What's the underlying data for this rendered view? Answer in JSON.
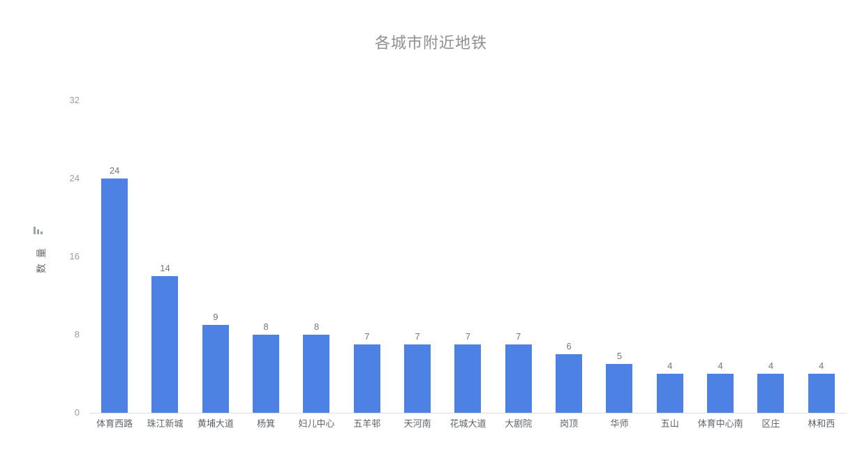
{
  "title": "各城市附近地铁",
  "y_axis": {
    "name": "数量",
    "tick_labels": [
      "0",
      "8",
      "16",
      "24",
      "32"
    ]
  },
  "icons": {
    "mini_bar_chart": "mini-bar-chart-icon"
  },
  "colors": {
    "bar": "#4e81e4",
    "title_text": "#8f8f8f",
    "y_tick_text": "#9b9b9b",
    "x_label_text": "#5f6368",
    "value_label_text": "#757575",
    "axis_line": "#dcdcdc",
    "icon": "#9aa4af",
    "background": "#ffffff"
  },
  "chart_data": {
    "type": "bar",
    "title": "各城市附近地铁",
    "categories": [
      "体育西路",
      "珠江新城",
      "黄埔大道",
      "杨箕",
      "妇儿中心",
      "五羊邨",
      "天河南",
      "花城大道",
      "大剧院",
      "岗顶",
      "华师",
      "五山",
      "体育中心南",
      "区庄",
      "林和西"
    ],
    "values": [
      24,
      14,
      9,
      8,
      8,
      7,
      7,
      7,
      7,
      6,
      5,
      4,
      4,
      4,
      4
    ],
    "xlabel": "",
    "ylabel": "数量",
    "ylim": [
      0,
      32
    ],
    "yticks": [
      0,
      8,
      16,
      24,
      32
    ],
    "grid": false,
    "legend": false,
    "bar_color": "#4e81e4",
    "value_labels_shown": true
  }
}
